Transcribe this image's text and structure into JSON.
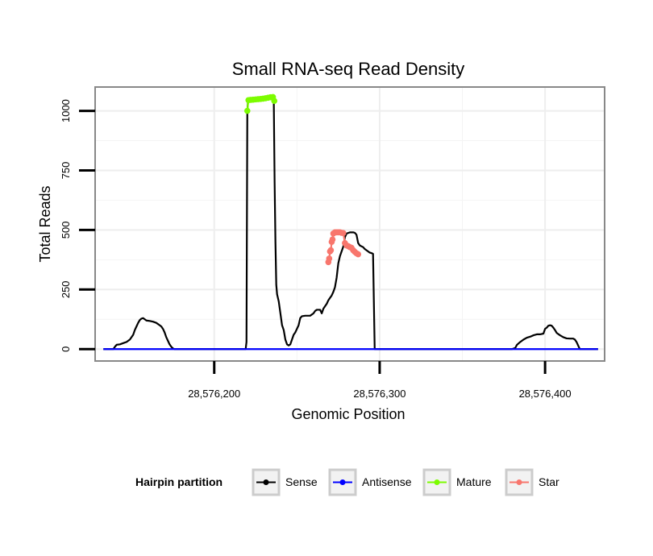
{
  "chart_data": {
    "type": "line",
    "title": "Small RNA-seq Read Density",
    "xlabel": "Genomic Position",
    "ylabel": "Total Reads",
    "xlim": [
      28576128,
      28576436
    ],
    "ylim": [
      -50,
      1100
    ],
    "x_ticks": [
      28576200,
      28576300,
      28576400
    ],
    "x_tick_labels": [
      "28,576,200",
      "28,576,300",
      "28,576,400"
    ],
    "y_ticks": [
      0,
      250,
      500,
      750,
      1000
    ],
    "y_tick_labels": [
      "0",
      "250",
      "500",
      "750",
      "1000"
    ],
    "grid": true,
    "legend": {
      "title": "Hairpin partition",
      "position": "bottom",
      "entries": [
        {
          "label": "Sense",
          "color": "#000000"
        },
        {
          "label": "Antisense",
          "color": "#0000ff"
        },
        {
          "label": "Mature",
          "color": "#7cfc00"
        },
        {
          "label": "Star",
          "color": "#f8766d"
        }
      ]
    },
    "series": [
      {
        "name": "Sense",
        "color": "#000000",
        "points": [
          [
            28576133,
            0
          ],
          [
            28576139,
            0
          ],
          [
            28576140,
            10
          ],
          [
            28576141,
            18
          ],
          [
            28576143,
            20
          ],
          [
            28576145,
            25
          ],
          [
            28576147,
            30
          ],
          [
            28576149,
            40
          ],
          [
            28576151,
            60
          ],
          [
            28576152,
            80
          ],
          [
            28576153,
            95
          ],
          [
            28576154,
            110
          ],
          [
            28576155,
            122
          ],
          [
            28576156,
            128
          ],
          [
            28576157,
            130
          ],
          [
            28576158,
            125
          ],
          [
            28576159,
            120
          ],
          [
            28576161,
            118
          ],
          [
            28576163,
            115
          ],
          [
            28576165,
            110
          ],
          [
            28576167,
            100
          ],
          [
            28576168,
            95
          ],
          [
            28576169,
            85
          ],
          [
            28576170,
            70
          ],
          [
            28576171,
            50
          ],
          [
            28576172,
            35
          ],
          [
            28576173,
            20
          ],
          [
            28576174,
            10
          ],
          [
            28576175,
            3
          ],
          [
            28576176,
            0
          ],
          [
            28576200,
            0
          ],
          [
            28576219,
            0
          ],
          [
            28576219.5,
            30
          ],
          [
            28576220,
            1000
          ],
          [
            28576220.5,
            1045
          ],
          [
            28576225,
            1048
          ],
          [
            28576230,
            1052
          ],
          [
            28576235,
            1058
          ],
          [
            28576236,
            1045
          ],
          [
            28576236.5,
            700
          ],
          [
            28576237,
            450
          ],
          [
            28576237.5,
            270
          ],
          [
            28576238,
            230
          ],
          [
            28576239,
            200
          ],
          [
            28576240,
            150
          ],
          [
            28576241,
            100
          ],
          [
            28576242,
            80
          ],
          [
            28576243,
            40
          ],
          [
            28576244,
            20
          ],
          [
            28576245,
            15
          ],
          [
            28576246,
            20
          ],
          [
            28576247,
            40
          ],
          [
            28576248,
            60
          ],
          [
            28576249,
            70
          ],
          [
            28576250,
            85
          ],
          [
            28576251,
            100
          ],
          [
            28576252,
            130
          ],
          [
            28576253,
            138
          ],
          [
            28576255,
            140
          ],
          [
            28576258,
            140
          ],
          [
            28576260,
            150
          ],
          [
            28576261,
            160
          ],
          [
            28576262,
            165
          ],
          [
            28576264,
            165
          ],
          [
            28576265,
            150
          ],
          [
            28576266,
            170
          ],
          [
            28576267,
            180
          ],
          [
            28576268,
            190
          ],
          [
            28576269,
            205
          ],
          [
            28576270,
            215
          ],
          [
            28576271,
            225
          ],
          [
            28576272,
            240
          ],
          [
            28576273,
            260
          ],
          [
            28576274,
            300
          ],
          [
            28576275,
            360
          ],
          [
            28576276,
            390
          ],
          [
            28576277,
            410
          ],
          [
            28576278,
            430
          ],
          [
            28576279,
            470
          ],
          [
            28576280,
            485
          ],
          [
            28576282,
            490
          ],
          [
            28576284,
            490
          ],
          [
            28576285,
            488
          ],
          [
            28576286,
            480
          ],
          [
            28576287,
            445
          ],
          [
            28576288,
            435
          ],
          [
            28576290,
            428
          ],
          [
            28576291,
            420
          ],
          [
            28576293,
            410
          ],
          [
            28576294,
            405
          ],
          [
            28576295,
            403
          ],
          [
            28576296,
            400
          ],
          [
            28576296.5,
            200
          ],
          [
            28576297,
            0
          ],
          [
            28576310,
            0
          ],
          [
            28576330,
            0
          ],
          [
            28576355,
            0
          ],
          [
            28576380,
            0
          ],
          [
            28576382,
            5
          ],
          [
            28576383,
            18
          ],
          [
            28576385,
            30
          ],
          [
            28576387,
            40
          ],
          [
            28576389,
            48
          ],
          [
            28576391,
            52
          ],
          [
            28576393,
            58
          ],
          [
            28576395,
            62
          ],
          [
            28576397,
            62
          ],
          [
            28576399,
            65
          ],
          [
            28576400,
            85
          ],
          [
            28576401,
            90
          ],
          [
            28576402,
            98
          ],
          [
            28576403,
            100
          ],
          [
            28576404,
            98
          ],
          [
            28576405,
            90
          ],
          [
            28576406,
            80
          ],
          [
            28576407,
            68
          ],
          [
            28576409,
            58
          ],
          [
            28576411,
            50
          ],
          [
            28576413,
            45
          ],
          [
            28576415,
            44
          ],
          [
            28576417,
            44
          ],
          [
            28576418,
            40
          ],
          [
            28576419,
            30
          ],
          [
            28576420,
            15
          ],
          [
            28576421,
            0
          ],
          [
            28576432,
            0
          ]
        ]
      },
      {
        "name": "Antisense",
        "color": "#0000ff",
        "points": [
          [
            28576133,
            0
          ],
          [
            28576432,
            0
          ]
        ]
      },
      {
        "name": "Mature",
        "color": "#7cfc00",
        "points": [
          [
            28576220,
            1000
          ],
          [
            28576220.7,
            1045
          ],
          [
            28576222,
            1046
          ],
          [
            28576223.5,
            1047
          ],
          [
            28576225,
            1048
          ],
          [
            28576226.5,
            1049
          ],
          [
            28576228,
            1050
          ],
          [
            28576229.5,
            1051
          ],
          [
            28576231,
            1053
          ],
          [
            28576232.5,
            1055
          ],
          [
            28576234,
            1057
          ],
          [
            28576235.5,
            1058
          ],
          [
            28576236.3,
            1042
          ]
        ]
      },
      {
        "name": "Star",
        "color": "#f8766d",
        "points": [
          [
            28576269,
            365
          ],
          [
            28576269.5,
            380
          ],
          [
            28576270,
            410
          ],
          [
            28576270.5,
            415
          ],
          [
            28576271,
            450
          ],
          [
            28576271.5,
            460
          ],
          [
            28576272,
            485
          ],
          [
            28576273,
            490
          ],
          [
            28576274,
            490
          ],
          [
            28576275,
            490
          ],
          [
            28576276,
            490
          ],
          [
            28576277,
            488
          ],
          [
            28576278,
            487
          ],
          [
            28576279,
            445
          ],
          [
            28576280,
            435
          ],
          [
            28576281,
            432
          ],
          [
            28576282,
            428
          ],
          [
            28576283,
            425
          ],
          [
            28576284,
            415
          ],
          [
            28576285,
            408
          ],
          [
            28576286,
            402
          ],
          [
            28576287,
            398
          ]
        ]
      }
    ]
  }
}
